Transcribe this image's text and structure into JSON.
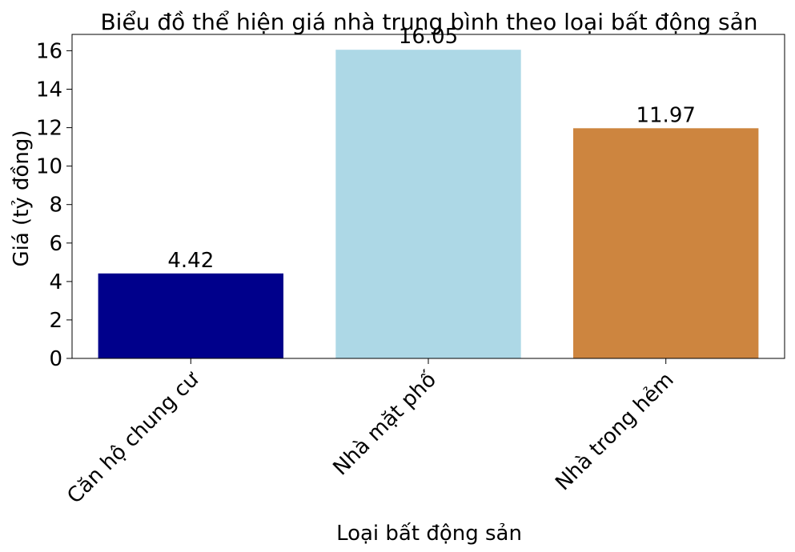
{
  "chart_data": {
    "type": "bar",
    "title": "Biểu đồ thể hiện giá nhà trung bình theo loại bất động sản",
    "xlabel": "Loại bất động sản",
    "ylabel": "Giá (tỷ đồng)",
    "categories": [
      "Căn hộ chung cư",
      "Nhà mặt phố",
      "Nhà trong hẻm"
    ],
    "values": [
      4.42,
      16.05,
      11.97
    ],
    "value_labels": [
      "4.42",
      "16.05",
      "11.97"
    ],
    "colors": [
      "#00008b",
      "#add8e6",
      "#cd853f"
    ],
    "ylim": [
      0,
      16.85
    ],
    "yticks": [
      0,
      2,
      4,
      6,
      8,
      10,
      12,
      14,
      16
    ],
    "ytick_labels": [
      "0",
      "2",
      "4",
      "6",
      "8",
      "10",
      "12",
      "14",
      "16"
    ],
    "grid": false,
    "legend": "none"
  }
}
